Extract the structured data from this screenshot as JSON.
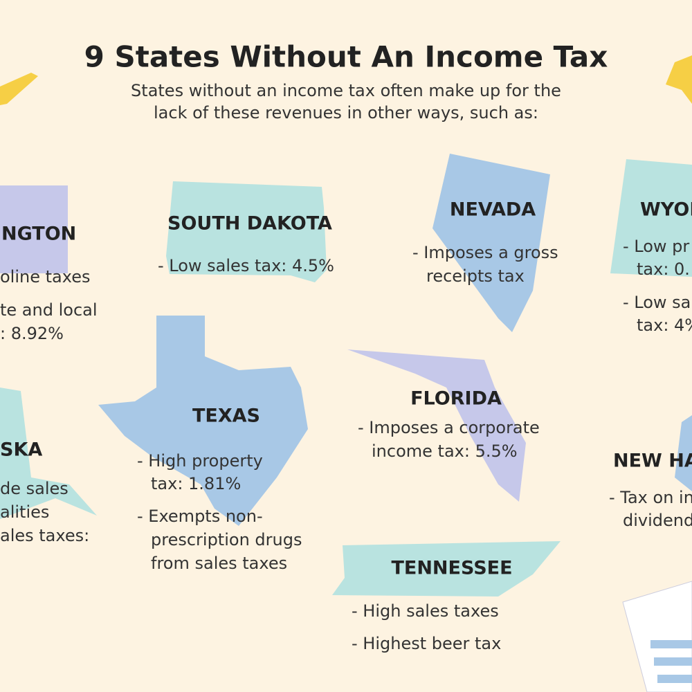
{
  "header": {
    "title": "9 States Without An Income Tax",
    "subtitle": [
      "States without an income tax often make up for the",
      "lack of these revenues in other ways, such as:"
    ]
  },
  "states": [
    {
      "name": "NGTON",
      "items": [
        [
          "oline taxes"
        ],
        [
          "te and local",
          ": 8.92%"
        ]
      ]
    },
    {
      "name": "SOUTH DAKOTA",
      "items": [
        [
          "- Low sales tax: 4.5%"
        ]
      ]
    },
    {
      "name": "NEVADA",
      "items": [
        [
          "- Imposes a gross",
          "receipts tax"
        ]
      ]
    },
    {
      "name": "WYOM",
      "items": [
        [
          "- Low pr",
          "tax: 0."
        ],
        [
          "- Low sa",
          "tax: 4%"
        ]
      ]
    },
    {
      "name": "SKA",
      "items": [
        [
          "de sales",
          "alities",
          "ales taxes:"
        ]
      ]
    },
    {
      "name": "TEXAS",
      "items": [
        [
          "- High property",
          "tax: 1.81%"
        ],
        [
          "- Exempts non-",
          "prescription drugs",
          "from sales taxes"
        ]
      ]
    },
    {
      "name": "FLORIDA",
      "items": [
        [
          "- Imposes a corporate",
          "income tax: 5.5%"
        ]
      ]
    },
    {
      "name": "NEW HA",
      "items": [
        [
          "- Tax on in",
          "dividend"
        ]
      ]
    },
    {
      "name": "TENNESSEE",
      "items": [
        [
          "- High sales taxes"
        ],
        [
          "- Highest beer tax"
        ]
      ]
    }
  ]
}
